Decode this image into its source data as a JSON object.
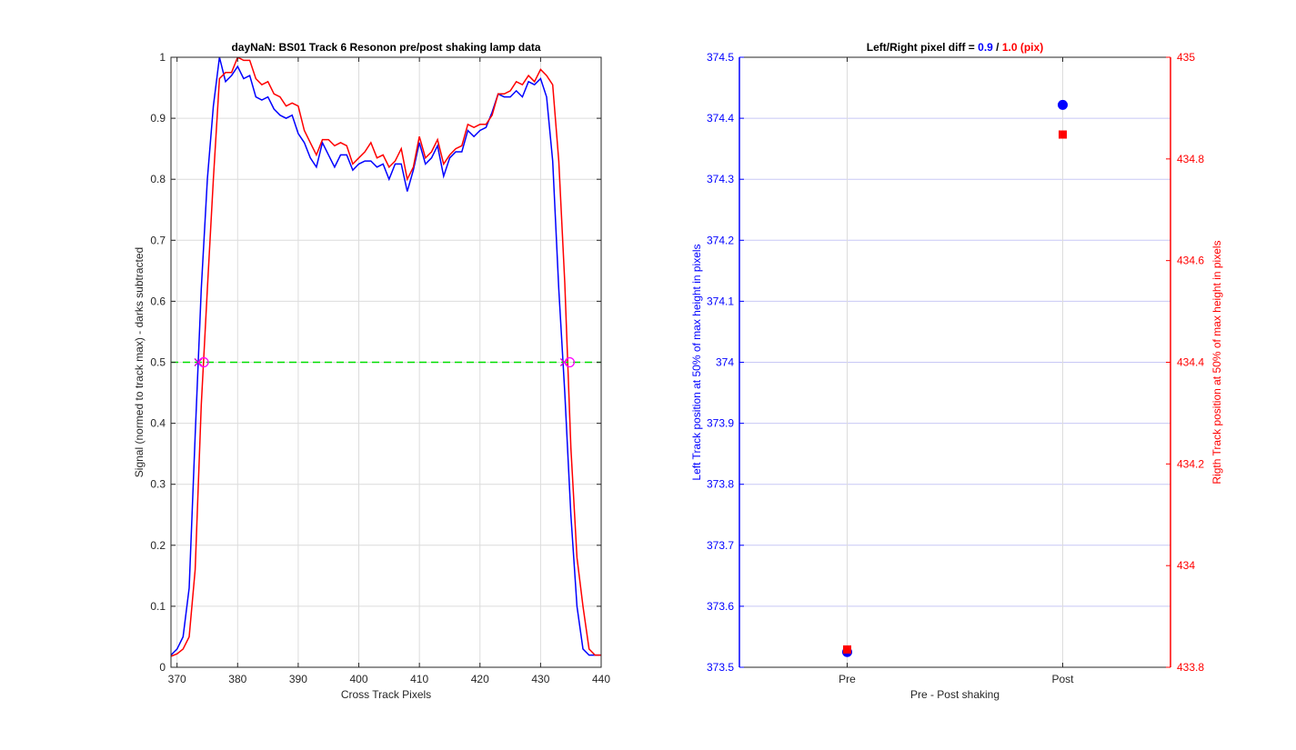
{
  "chart_data": [
    {
      "type": "line",
      "title": "dayNaN: BS01  Track 6 Resonon pre/post shaking lamp data",
      "xlabel": "Cross Track Pixels",
      "ylabel": "Signal (normed to track max) - darks subtracted",
      "xlim": [
        369,
        440
      ],
      "ylim": [
        0,
        1
      ],
      "xticks": [
        "370",
        "380",
        "390",
        "400",
        "410",
        "420",
        "430",
        "440"
      ],
      "yticks": [
        "0",
        "0.1",
        "0.2",
        "0.3",
        "0.4",
        "0.5",
        "0.6",
        "0.7",
        "0.8",
        "0.9",
        "1"
      ],
      "grid": true,
      "series": [
        {
          "color": "#0000ff",
          "x": [
            369,
            370,
            371,
            372,
            373,
            374,
            375,
            376,
            377,
            378,
            379,
            380,
            381,
            382,
            383,
            384,
            385,
            386,
            387,
            388,
            389,
            390,
            391,
            392,
            393,
            394,
            395,
            396,
            397,
            398,
            399,
            400,
            401,
            402,
            403,
            404,
            405,
            406,
            407,
            408,
            409,
            410,
            411,
            412,
            413,
            414,
            415,
            416,
            417,
            418,
            419,
            420,
            421,
            422,
            423,
            424,
            425,
            426,
            427,
            428,
            429,
            430,
            431,
            432,
            433,
            434,
            435,
            436,
            437,
            438,
            439,
            440
          ],
          "y": [
            0.02,
            0.03,
            0.05,
            0.13,
            0.38,
            0.62,
            0.8,
            0.92,
            1.0,
            0.96,
            0.97,
            0.985,
            0.965,
            0.97,
            0.935,
            0.93,
            0.935,
            0.915,
            0.905,
            0.9,
            0.905,
            0.875,
            0.86,
            0.835,
            0.82,
            0.86,
            0.84,
            0.82,
            0.84,
            0.84,
            0.815,
            0.825,
            0.83,
            0.83,
            0.82,
            0.825,
            0.8,
            0.825,
            0.825,
            0.78,
            0.815,
            0.86,
            0.825,
            0.835,
            0.855,
            0.805,
            0.835,
            0.845,
            0.845,
            0.88,
            0.87,
            0.88,
            0.885,
            0.91,
            0.94,
            0.935,
            0.935,
            0.945,
            0.935,
            0.96,
            0.955,
            0.965,
            0.935,
            0.83,
            0.62,
            0.45,
            0.25,
            0.1,
            0.03,
            0.02,
            0.02,
            0.02
          ]
        },
        {
          "color": "#ff0000",
          "x": [
            369,
            370,
            371,
            372,
            373,
            374,
            375,
            376,
            377,
            378,
            379,
            380,
            381,
            382,
            383,
            384,
            385,
            386,
            387,
            388,
            389,
            390,
            391,
            392,
            393,
            394,
            395,
            396,
            397,
            398,
            399,
            400,
            401,
            402,
            403,
            404,
            405,
            406,
            407,
            408,
            409,
            410,
            411,
            412,
            413,
            414,
            415,
            416,
            417,
            418,
            419,
            420,
            421,
            422,
            423,
            424,
            425,
            426,
            427,
            428,
            429,
            430,
            431,
            432,
            433,
            434,
            435,
            436,
            437,
            438,
            439,
            440
          ],
          "y": [
            0.018,
            0.022,
            0.03,
            0.05,
            0.16,
            0.43,
            0.62,
            0.8,
            0.965,
            0.975,
            0.975,
            1.0,
            0.995,
            0.995,
            0.965,
            0.955,
            0.96,
            0.94,
            0.935,
            0.92,
            0.925,
            0.92,
            0.88,
            0.86,
            0.84,
            0.865,
            0.865,
            0.855,
            0.86,
            0.855,
            0.825,
            0.835,
            0.845,
            0.86,
            0.835,
            0.84,
            0.82,
            0.83,
            0.85,
            0.8,
            0.82,
            0.87,
            0.835,
            0.845,
            0.865,
            0.825,
            0.84,
            0.85,
            0.855,
            0.89,
            0.885,
            0.89,
            0.89,
            0.905,
            0.94,
            0.94,
            0.945,
            0.96,
            0.955,
            0.97,
            0.96,
            0.98,
            0.97,
            0.955,
            0.83,
            0.63,
            0.36,
            0.18,
            0.1,
            0.03,
            0.02,
            0.02
          ]
        },
        {
          "color": "#00dd00",
          "style": "dashed",
          "x": [
            369,
            440
          ],
          "y": [
            0.5,
            0.5
          ]
        }
      ],
      "markers": [
        {
          "x": 373.5,
          "y": 0.5,
          "color": "#cc00cc",
          "symbol": "x"
        },
        {
          "x": 374.4,
          "y": 0.5,
          "color": "#ff00ff",
          "symbol": "o"
        },
        {
          "x": 433.9,
          "y": 0.5,
          "color": "#cc00cc",
          "symbol": "x"
        },
        {
          "x": 434.8,
          "y": 0.5,
          "color": "#ff00ff",
          "symbol": "o"
        }
      ]
    },
    {
      "type": "scatter",
      "title_parts": [
        {
          "text": "Left/Right pixel diff = ",
          "color": "#000000"
        },
        {
          "text": "0.9",
          "color": "#0000ff"
        },
        {
          "text": " / ",
          "color": "#000000"
        },
        {
          "text": "1.0 (pix)",
          "color": "#ff0000"
        }
      ],
      "xlabel": "Pre - Post shaking",
      "categories": [
        "Pre",
        "Post"
      ],
      "ylabel_left": "Left Track position at 50% of max height in pixels",
      "ylabel_right": "Rigth Track position at 50% of max height in pixels",
      "ylim_left": [
        373.5,
        374.5
      ],
      "ylim_right": [
        433.8,
        435
      ],
      "yticks_left": [
        "373.5",
        "373.6",
        "373.7",
        "373.8",
        "373.9",
        "374",
        "374.1",
        "374.2",
        "374.3",
        "374.4",
        "374.5"
      ],
      "yticks_right": [
        "433.8",
        "434",
        "434.2",
        "434.4",
        "434.6",
        "434.8",
        "435"
      ],
      "grid": true,
      "series": [
        {
          "axis": "left",
          "color": "#0000ff",
          "marker": "circle",
          "values": [
            373.525,
            374.422
          ]
        },
        {
          "axis": "right",
          "color": "#ff0000",
          "marker": "square",
          "values": [
            433.835,
            434.848
          ]
        }
      ]
    }
  ]
}
